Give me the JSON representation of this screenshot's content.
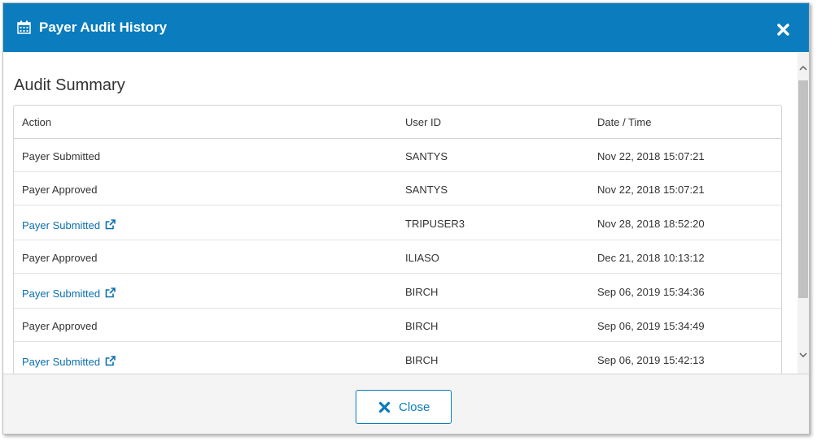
{
  "dialog": {
    "title": "Payer Audit History",
    "title_icon": "calendar-icon",
    "close_icon": "close-icon",
    "header_color": "#0b7cbd"
  },
  "summary": {
    "title": "Audit Summary",
    "columns": {
      "action": "Action",
      "user_id": "User ID",
      "date_time": "Date / Time"
    },
    "rows": [
      {
        "action": "Payer Submitted",
        "user_id": "SANTYS",
        "date_time": "Nov 22, 2018 15:07:21",
        "is_link": false
      },
      {
        "action": "Payer Approved",
        "user_id": "SANTYS",
        "date_time": "Nov 22, 2018 15:07:21",
        "is_link": false
      },
      {
        "action": "Payer Submitted",
        "user_id": "TRIPUSER3",
        "date_time": "Nov 28, 2018 18:52:20",
        "is_link": true
      },
      {
        "action": "Payer Approved",
        "user_id": "ILIASO",
        "date_time": "Dec 21, 2018 10:13:12",
        "is_link": false
      },
      {
        "action": "Payer Submitted",
        "user_id": "BIRCH",
        "date_time": "Sep 06, 2019 15:34:36",
        "is_link": true
      },
      {
        "action": "Payer Approved",
        "user_id": "BIRCH",
        "date_time": "Sep 06, 2019 15:34:49",
        "is_link": false
      },
      {
        "action": "Payer Submitted",
        "user_id": "BIRCH",
        "date_time": "Sep 06, 2019 15:42:13",
        "is_link": true
      }
    ],
    "link_icon": "external-link-icon",
    "link_color": "#0b6fae"
  },
  "footer": {
    "close_label": "Close",
    "close_icon": "close-icon"
  }
}
